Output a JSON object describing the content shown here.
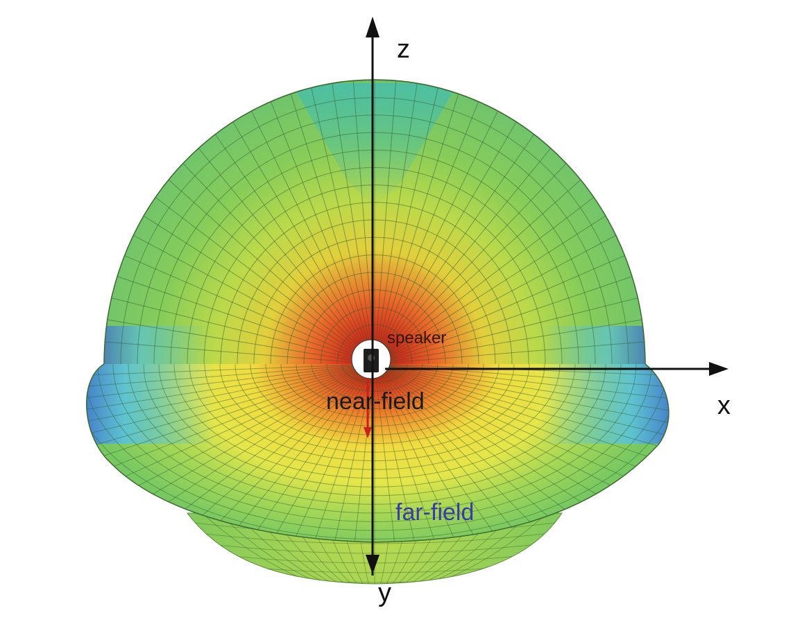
{
  "axes": {
    "z": "z",
    "x": "x",
    "y": "y"
  },
  "labels": {
    "speaker": "speaker",
    "near_field": "near-field",
    "far_field": "far-field"
  },
  "colors": {
    "hot": "#d9301c",
    "orange": "#f08a2c",
    "yellow": "#eee243",
    "yellow_green": "#bcd94a",
    "green": "#78c862",
    "teal": "#4cbfa4",
    "cyan": "#5ac2dc",
    "blue": "#3f6fc8",
    "mesh": "#2f5a2f",
    "far_field_text": "#3a3aa6"
  }
}
